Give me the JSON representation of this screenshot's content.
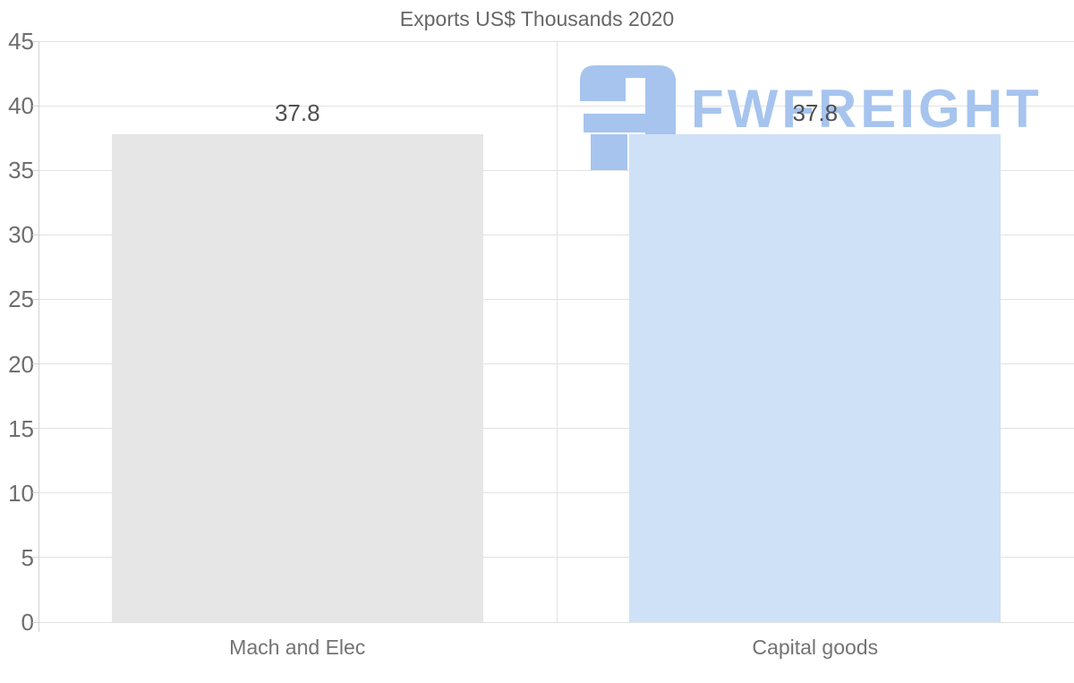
{
  "title": "Exports US$ Thousands 2020",
  "watermark": {
    "text": "FWFREIGHT",
    "color": "#a6c4ee",
    "icon": "fwfreight-logo"
  },
  "chart_data": {
    "type": "bar",
    "title": "Exports US$ Thousands 2020",
    "categories": [
      "Mach and Elec",
      "Capital goods"
    ],
    "values": [
      37.8,
      37.8
    ],
    "value_labels": [
      "37.8",
      "37.8"
    ],
    "bar_colors": [
      "#e6e6e6",
      "#cfe1f7"
    ],
    "xlabel": "",
    "ylabel": "",
    "ylim": [
      0,
      45
    ],
    "yticks": [
      0,
      5,
      10,
      15,
      20,
      25,
      30,
      35,
      40,
      45
    ],
    "grid": "horizontal",
    "legend": "none",
    "colors": {
      "grid": "#e2e2e2",
      "axis": "#d2d2d2",
      "tick_label": "#6e6e6e",
      "title": "#676767",
      "value_label": "#4f4f4f",
      "category_label": "#737373",
      "background": "#ffffff"
    }
  }
}
